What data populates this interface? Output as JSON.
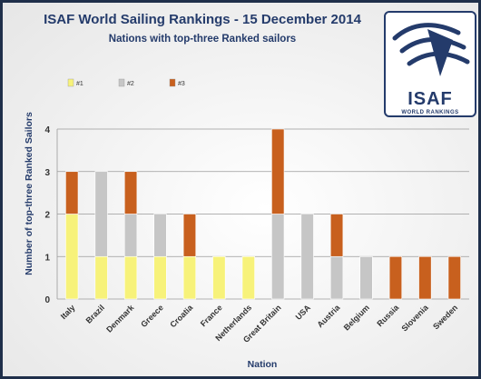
{
  "chart_data": {
    "type": "bar",
    "stacked": true,
    "title": "ISAF World Sailing Rankings - 15 December 2014",
    "subtitle": "Nations  with top-three Ranked sailors",
    "xlabel": "Nation",
    "ylabel": "Number of top-three Ranked Sailors",
    "ylim": [
      0,
      4
    ],
    "yticks": [
      "0",
      "1",
      "2",
      "3",
      "4"
    ],
    "grid": true,
    "legend_position": "top-left",
    "categories": [
      "Italy",
      "Brazil",
      "Denmark",
      "Greece",
      "Croatia",
      "France",
      "Netherlands",
      "Great Britain",
      "USA",
      "Austria",
      "Belgium",
      "Russia",
      "Slovenia",
      "Sweden"
    ],
    "series": [
      {
        "name": "#1",
        "color": "#f7f27a",
        "values": [
          2,
          1,
          1,
          1,
          1,
          1,
          1,
          0,
          0,
          0,
          0,
          0,
          0,
          0
        ]
      },
      {
        "name": "#2",
        "color": "#c6c6c6",
        "values": [
          0,
          2,
          1,
          1,
          0,
          0,
          0,
          2,
          2,
          1,
          1,
          0,
          0,
          0
        ]
      },
      {
        "name": "#3",
        "color": "#c8601e",
        "values": [
          1,
          0,
          1,
          0,
          1,
          0,
          0,
          2,
          0,
          1,
          0,
          1,
          1,
          1
        ]
      }
    ]
  },
  "logo": {
    "text": "ISAF",
    "subtext": "WORLD RANKINGS",
    "icon": "sail-emblem-icon"
  }
}
